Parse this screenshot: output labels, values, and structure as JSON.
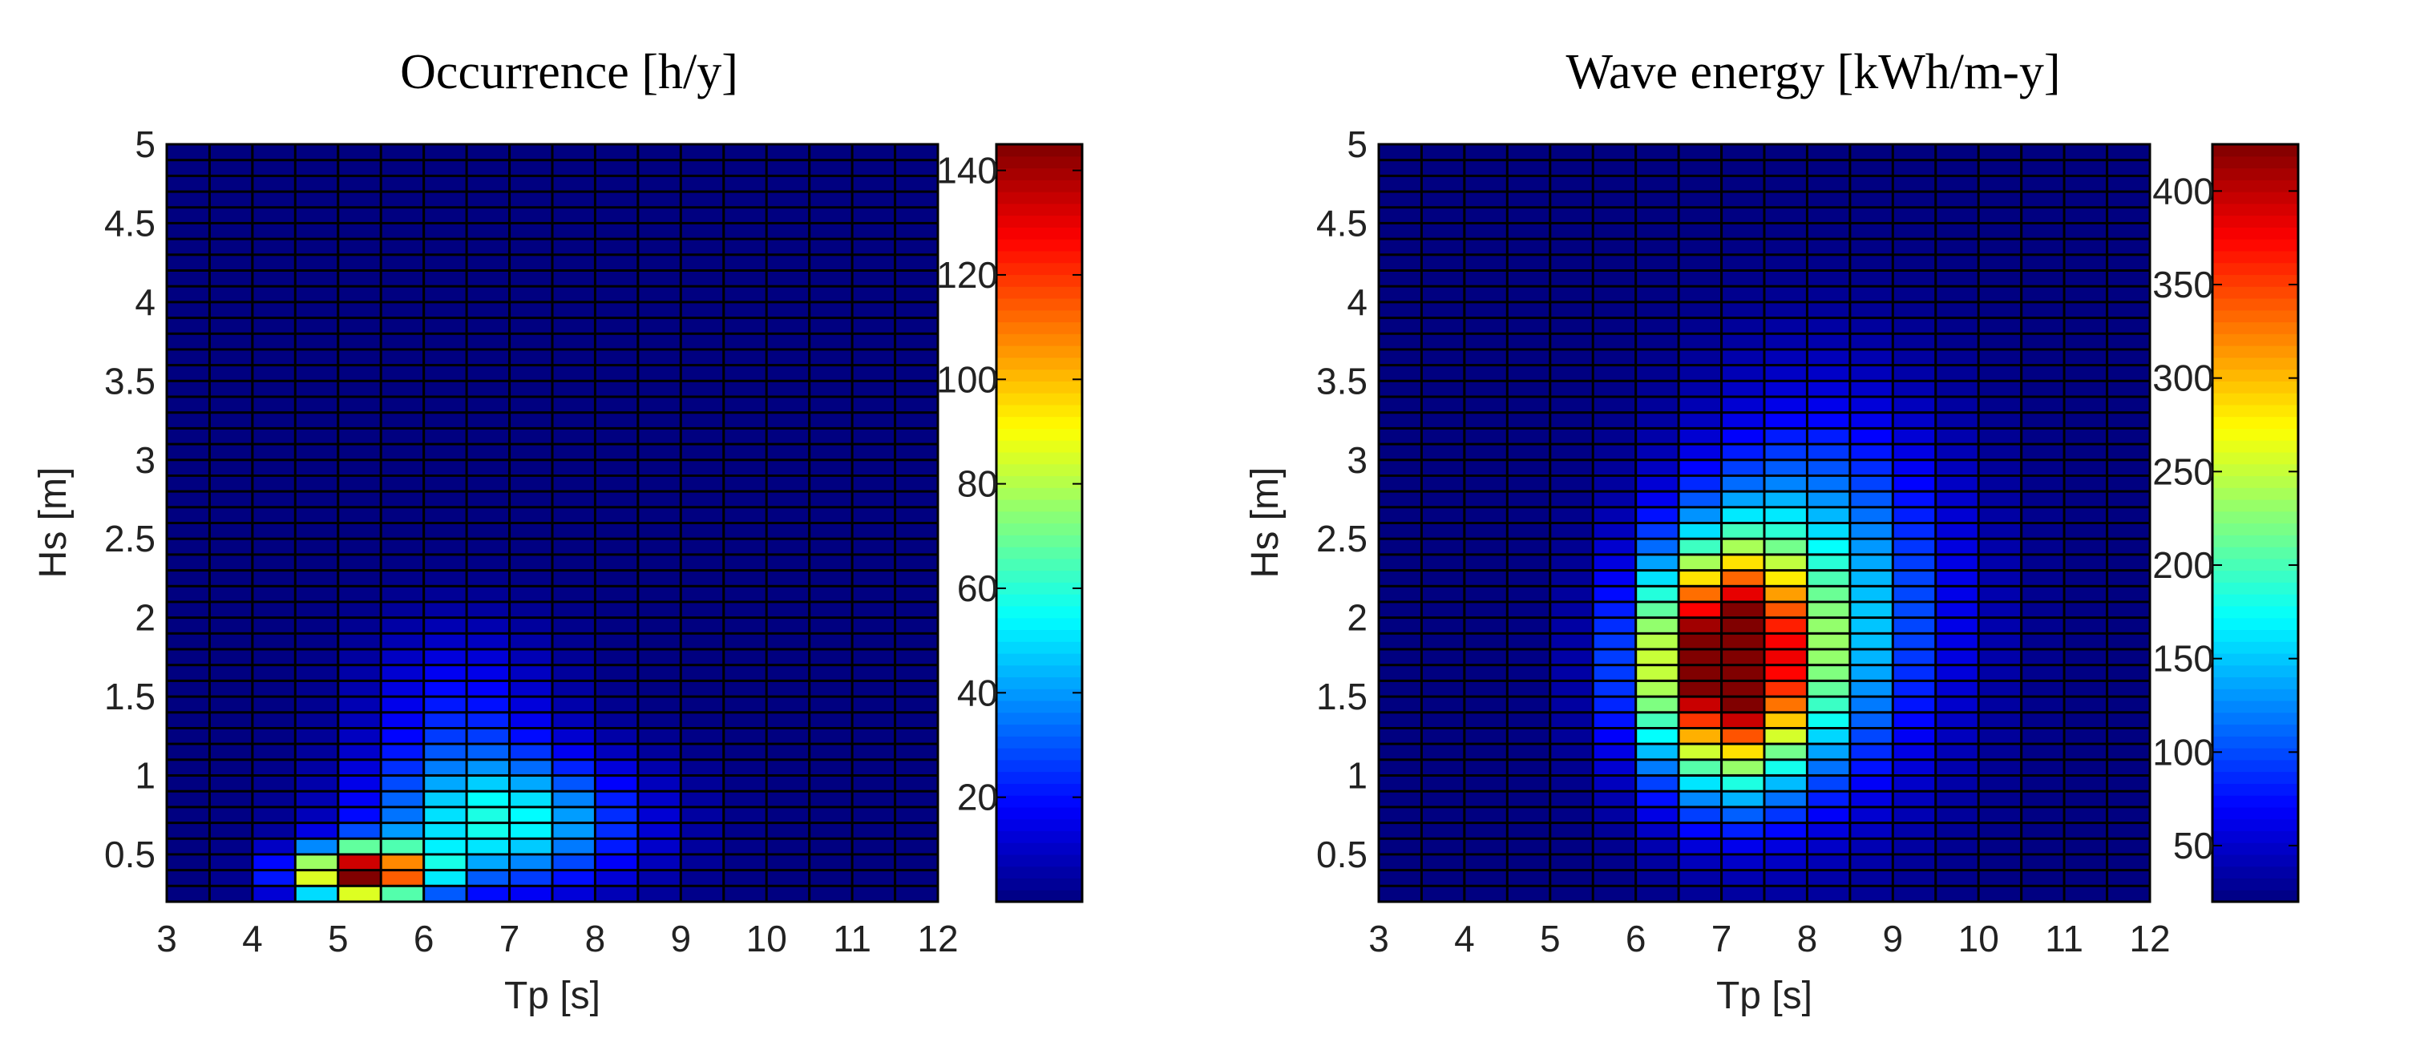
{
  "chart_data": [
    {
      "type": "heatmap",
      "title": "Occurrence [h/y]",
      "xlabel": "Tp [s]",
      "ylabel": "Hs [m]",
      "xlim": [
        3,
        12
      ],
      "ylim": [
        0.2,
        5
      ],
      "x_ticks": [
        "3",
        "4",
        "5",
        "6",
        "7",
        "8",
        "9",
        "10",
        "11",
        "12"
      ],
      "y_ticks": [
        "0.5",
        "1",
        "1.5",
        "2",
        "2.5",
        "3",
        "3.5",
        "4",
        "4.5",
        "5"
      ],
      "grid": {
        "tp_start": 3,
        "tp_step": 0.5,
        "tp_bins": 18,
        "hs_start": 0.2,
        "hs_step": 0.1,
        "hs_bins": 48
      },
      "colormap": "jet",
      "clim": [
        0,
        145
      ],
      "colorbar_ticks": [
        "20",
        "40",
        "60",
        "80",
        "100",
        "120",
        "140"
      ],
      "peak": {
        "tp": 5.2,
        "hs": 0.4,
        "value": 145
      }
    },
    {
      "type": "heatmap",
      "title": "Wave energy [kWh/m-y]",
      "xlabel": "Tp [s]",
      "ylabel": "Hs [m]",
      "xlim": [
        3,
        12
      ],
      "ylim": [
        0.2,
        5
      ],
      "x_ticks": [
        "3",
        "4",
        "5",
        "6",
        "7",
        "8",
        "9",
        "10",
        "11",
        "12"
      ],
      "y_ticks": [
        "0.5",
        "1",
        "1.5",
        "2",
        "2.5",
        "3",
        "3.5",
        "4",
        "4.5",
        "5"
      ],
      "grid": {
        "tp_start": 3,
        "tp_step": 0.5,
        "tp_bins": 18,
        "hs_start": 0.2,
        "hs_step": 0.1,
        "hs_bins": 48
      },
      "colormap": "jet",
      "clim": [
        20,
        425
      ],
      "colorbar_ticks": [
        "50",
        "100",
        "150",
        "200",
        "250",
        "300",
        "350",
        "400"
      ],
      "peak": {
        "tp": 7.2,
        "hs": 1.5,
        "value": 425
      }
    }
  ]
}
